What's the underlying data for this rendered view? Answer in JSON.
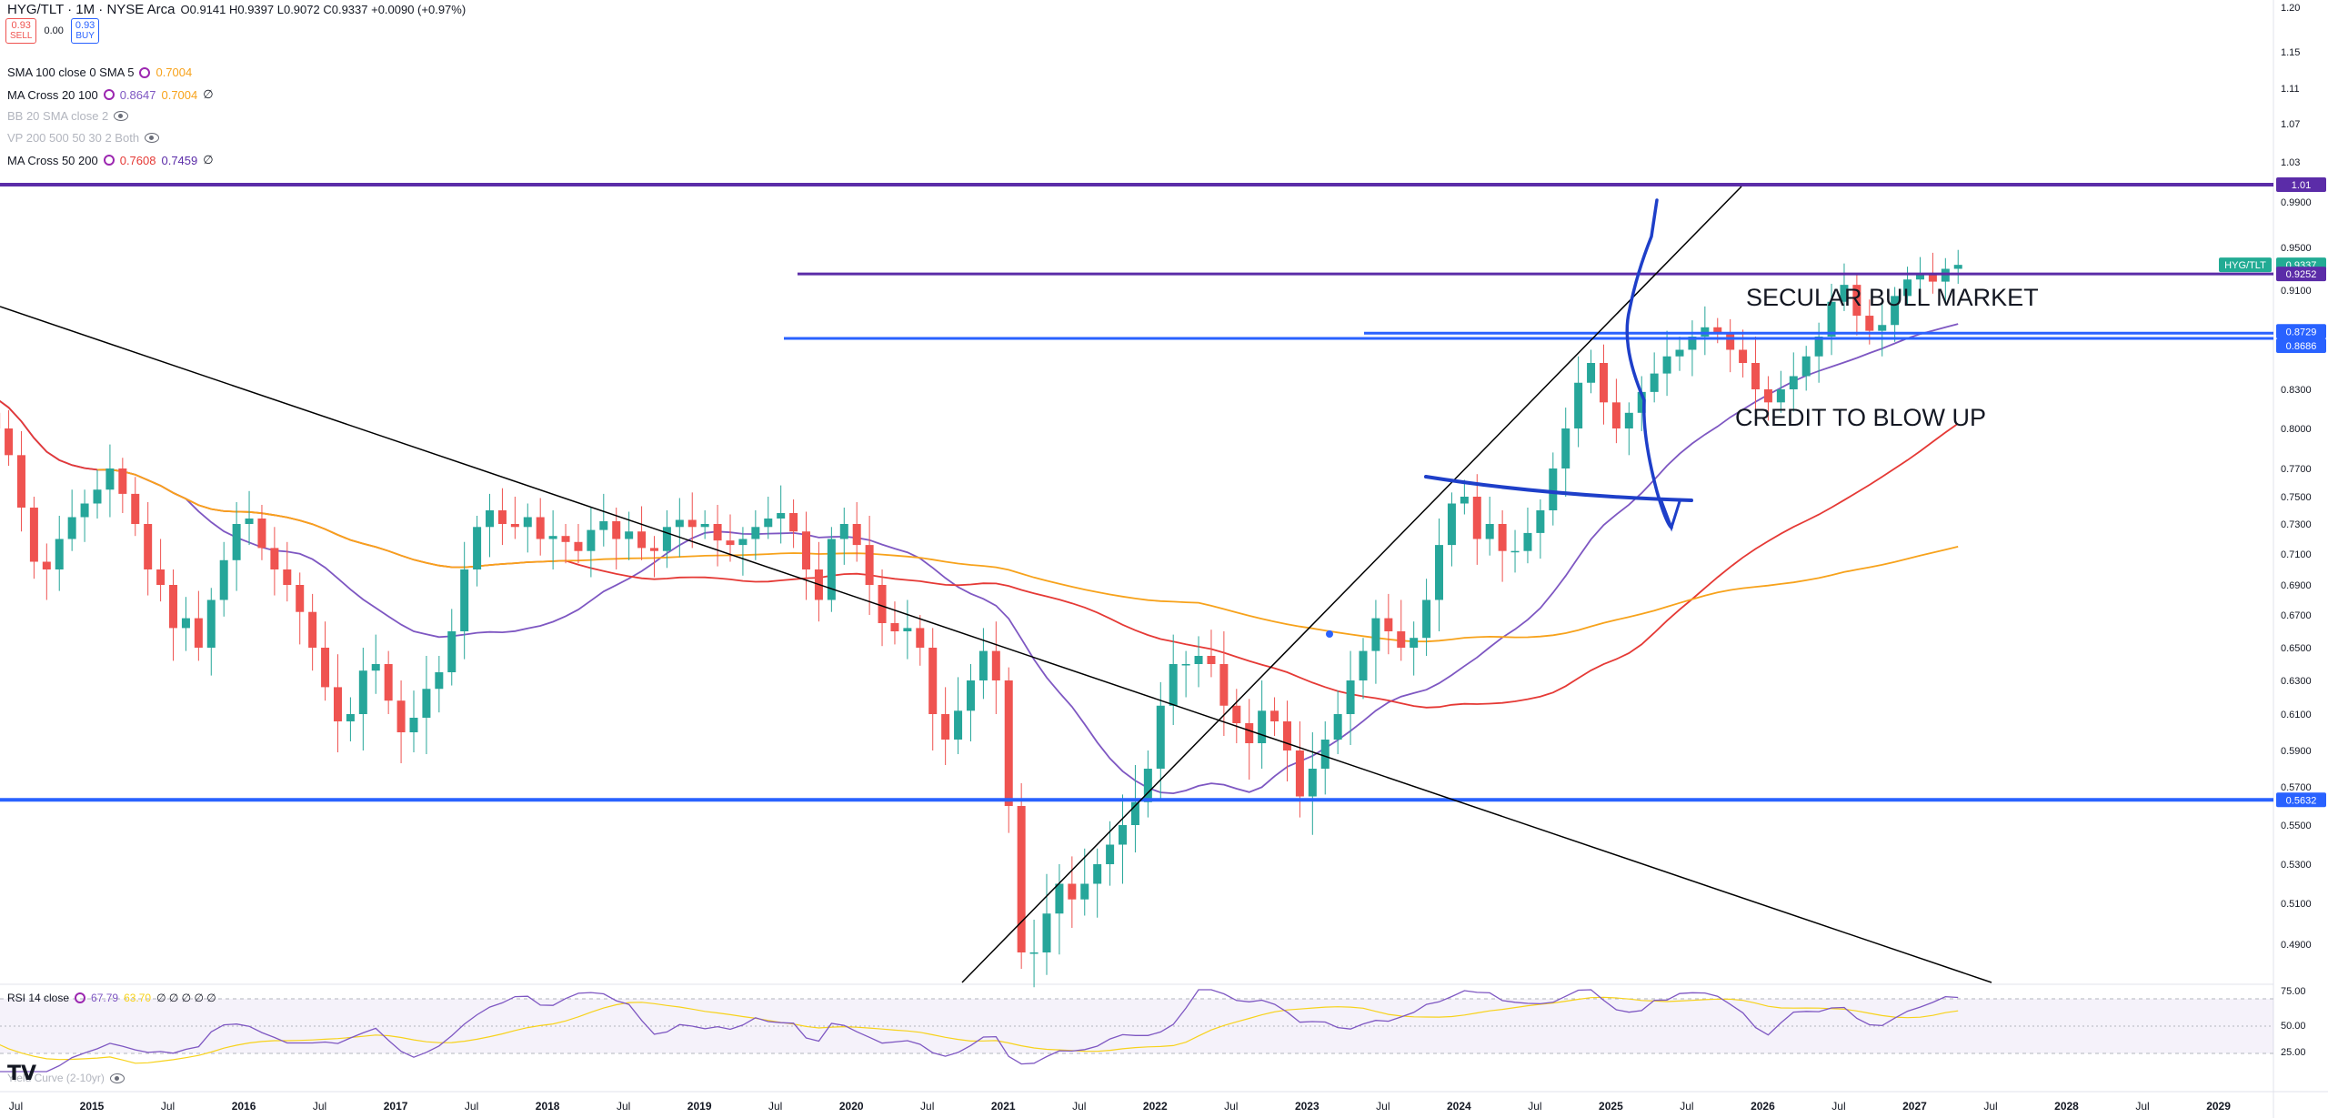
{
  "header": {
    "title": "HYG/TLT · 1M · NYSE Arca",
    "ohlc": "O0.9141 H0.9397 L0.9072 C0.9337 +0.0090 (+0.97%)",
    "sell_price": "0.93",
    "sell_label": "SELL",
    "spread": "0.00",
    "buy_price": "0.93",
    "buy_label": "BUY"
  },
  "indicators": [
    {
      "name": "SMA 100 close 0 SMA 5",
      "v1": "0.7004",
      "v2": "",
      "extra": ""
    },
    {
      "name": "MA Cross 20 100",
      "v1": "0.8647",
      "v2": "0.7004",
      "extra": "∅"
    },
    {
      "name": "BB 20 SMA close 2",
      "v1": "",
      "v2": "",
      "extra": ""
    },
    {
      "name": "VP 200 500 50 30 2 Both",
      "v1": "",
      "v2": "",
      "extra": ""
    },
    {
      "name": "MA Cross 50 200",
      "v1": "0.7608",
      "v2": "0.7459",
      "extra": "∅"
    }
  ],
  "annotations": {
    "bull": "SECULAR BULL MARKET",
    "credit": "CREDIT TO BLOW UP"
  },
  "rsi": {
    "label": "RSI 14 close",
    "v1": "67.79",
    "v2": "63.70",
    "nulls": "∅ ∅ ∅ ∅ ∅",
    "ticks": [
      "75.00",
      "50.00",
      "25.00"
    ]
  },
  "yield_label": "Yield Curve (2-10yr)",
  "price_badges": [
    {
      "text": "1.01",
      "price": 1.01,
      "color": "#5b2ca8"
    },
    {
      "text": "0.9337",
      "price": 0.9337,
      "color": "#22ab94"
    },
    {
      "text": "HYG/TLT",
      "price": 0.9337,
      "color": "#22ab94"
    },
    {
      "text": "0.9252",
      "price": 0.9252,
      "color": "#5b2ca8"
    },
    {
      "text": "0.8729",
      "price": 0.8729,
      "color": "#2962ff"
    },
    {
      "text": "0.8686",
      "price": 0.8686,
      "color": "#2962ff"
    },
    {
      "text": "0.5632",
      "price": 0.5632,
      "color": "#2962ff"
    }
  ],
  "colors": {
    "up": "#26a69a",
    "down": "#ef5350",
    "sma100": "#f7a21b",
    "ma20": "#7e57c2",
    "ma50": "#e53935",
    "hline_blue": "#2962ff",
    "hline_purple": "#5b2ca8",
    "draw_blue": "#1e3fc9"
  },
  "chart_data": {
    "type": "candlestick",
    "title": "HYG/TLT · 1M · NYSE Arca",
    "y_axis_ticks": [
      "1.20",
      "1.15",
      "1.11",
      "1.07",
      "1.03",
      "0.9900",
      "0.9500",
      "0.9100",
      "0.8300",
      "0.8000",
      "0.7700",
      "0.7500",
      "0.7300",
      "0.7100",
      "0.6900",
      "0.6700",
      "0.6500",
      "0.6300",
      "0.6100",
      "0.5900",
      "0.5700",
      "0.5500",
      "0.5300",
      "0.5100",
      "0.4900"
    ],
    "x_axis_ticks": [
      "Jul",
      "2015",
      "Jul",
      "2016",
      "Jul",
      "2017",
      "Jul",
      "2018",
      "Jul",
      "2019",
      "Jul",
      "2020",
      "Jul",
      "2021",
      "Jul",
      "2022",
      "Jul",
      "2023",
      "Jul",
      "2024",
      "Jul",
      "2025",
      "Jul",
      "2026",
      "Jul",
      "2027",
      "Jul",
      "2028",
      "Jul",
      "2029"
    ],
    "close_series": [
      0.836,
      0.838,
      0.83,
      0.812,
      0.8,
      0.78,
      0.742,
      0.705,
      0.7,
      0.72,
      0.735,
      0.745,
      0.755,
      0.77,
      0.752,
      0.73,
      0.7,
      0.69,
      0.662,
      0.668,
      0.65,
      0.68,
      0.706,
      0.73,
      0.734,
      0.714,
      0.7,
      0.69,
      0.672,
      0.65,
      0.626,
      0.606,
      0.61,
      0.636,
      0.64,
      0.618,
      0.6,
      0.608,
      0.625,
      0.635,
      0.66,
      0.7,
      0.728,
      0.74,
      0.73,
      0.728,
      0.735,
      0.72,
      0.722,
      0.718,
      0.712,
      0.726,
      0.732,
      0.72,
      0.725,
      0.714,
      0.712,
      0.728,
      0.733,
      0.728,
      0.73,
      0.719,
      0.716,
      0.72,
      0.728,
      0.734,
      0.738,
      0.725,
      0.7,
      0.68,
      0.72,
      0.73,
      0.716,
      0.69,
      0.665,
      0.66,
      0.662,
      0.65,
      0.61,
      0.596,
      0.612,
      0.63,
      0.648,
      0.63,
      0.56,
      0.486,
      0.486,
      0.505,
      0.52,
      0.512,
      0.52,
      0.53,
      0.54,
      0.55,
      0.562,
      0.58,
      0.615,
      0.64,
      0.64,
      0.645,
      0.64,
      0.615,
      0.605,
      0.594,
      0.612,
      0.606,
      0.59,
      0.565,
      0.58,
      0.596,
      0.61,
      0.63,
      0.648,
      0.668,
      0.66,
      0.65,
      0.656,
      0.68,
      0.716,
      0.745,
      0.75,
      0.72,
      0.73,
      0.712,
      0.712,
      0.724,
      0.74,
      0.77,
      0.8,
      0.835,
      0.85,
      0.82,
      0.8,
      0.812,
      0.828,
      0.842,
      0.855,
      0.86,
      0.87,
      0.878,
      0.873,
      0.86,
      0.85,
      0.83,
      0.82,
      0.83,
      0.84,
      0.855,
      0.87,
      0.9,
      0.915,
      0.888,
      0.875,
      0.88,
      0.905,
      0.92,
      0.925,
      0.918,
      0.93,
      0.9337
    ]
  }
}
